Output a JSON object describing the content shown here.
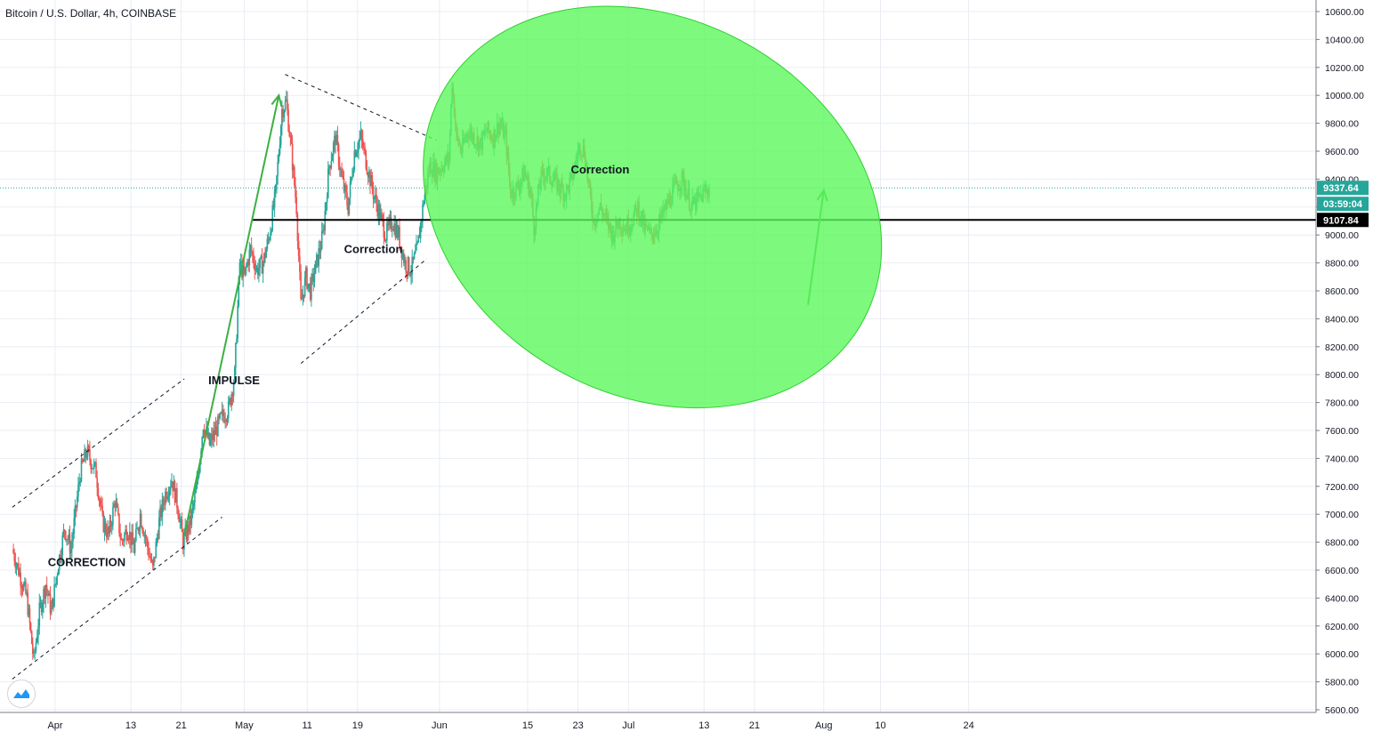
{
  "header": {
    "title": "Bitcoin / U.S. Dollar, 4h, COINBASE"
  },
  "colors": {
    "up": "#26a69a",
    "down": "#ef5350",
    "grid": "#e9edf3",
    "zone_fill": "#5cf75c",
    "zone_stroke": "#2fcf2f",
    "arrow": "#3cb043",
    "price_badge": "#26a69a",
    "support_badge": "#000000"
  },
  "chart_data": {
    "type": "candlestick",
    "title": "Bitcoin / U.S. Dollar, 4h, COINBASE",
    "xlabel": "",
    "ylabel": "",
    "ylim": [
      5600,
      10700
    ],
    "grid": true,
    "y_ticks": [
      "5600.00",
      "5800.00",
      "6000.00",
      "6200.00",
      "6400.00",
      "6600.00",
      "6800.00",
      "7000.00",
      "7200.00",
      "7400.00",
      "7600.00",
      "7800.00",
      "8000.00",
      "8200.00",
      "8400.00",
      "8600.00",
      "8800.00",
      "9000.00",
      "9200.00",
      "9400.00",
      "9600.00",
      "9800.00",
      "10000.00",
      "10200.00",
      "10400.00",
      "10600.00"
    ],
    "x_ticks": [
      {
        "label": "Apr",
        "day": 1
      },
      {
        "label": "13",
        "day": 13
      },
      {
        "label": "21",
        "day": 21
      },
      {
        "label": "May",
        "day": 31
      },
      {
        "label": "11",
        "day": 41
      },
      {
        "label": "19",
        "day": 49
      },
      {
        "label": "Jun",
        "day": 62
      },
      {
        "label": "15",
        "day": 76
      },
      {
        "label": "23",
        "day": 84
      },
      {
        "label": "Jul",
        "day": 92
      },
      {
        "label": "13",
        "day": 104
      },
      {
        "label": "21",
        "day": 112
      },
      {
        "label": "Aug",
        "day": 123
      },
      {
        "label": "10",
        "day": 132
      },
      {
        "label": "24",
        "day": 146
      }
    ],
    "price_path": [
      {
        "d": -5.8,
        "p": 6750
      },
      {
        "d": -3.5,
        "p": 6400
      },
      {
        "d": -2.4,
        "p": 5950
      },
      {
        "d": -1.5,
        "p": 6300
      },
      {
        "d": -0.5,
        "p": 6500
      },
      {
        "d": 0.4,
        "p": 6300
      },
      {
        "d": 1.5,
        "p": 6650
      },
      {
        "d": 2.5,
        "p": 6900
      },
      {
        "d": 3.5,
        "p": 6750
      },
      {
        "d": 5.0,
        "p": 7300
      },
      {
        "d": 6.0,
        "p": 7450
      },
      {
        "d": 7.5,
        "p": 7300
      },
      {
        "d": 8.5,
        "p": 6950
      },
      {
        "d": 9.5,
        "p": 6850
      },
      {
        "d": 10.5,
        "p": 7100
      },
      {
        "d": 11.5,
        "p": 6800
      },
      {
        "d": 12.5,
        "p": 6900
      },
      {
        "d": 13.5,
        "p": 6750
      },
      {
        "d": 14.5,
        "p": 7000
      },
      {
        "d": 15.5,
        "p": 6800
      },
      {
        "d": 16.5,
        "p": 6600
      },
      {
        "d": 17.5,
        "p": 6950
      },
      {
        "d": 18.5,
        "p": 7150
      },
      {
        "d": 19.5,
        "p": 7250
      },
      {
        "d": 20.5,
        "p": 7050
      },
      {
        "d": 21.3,
        "p": 6800
      },
      {
        "d": 22.5,
        "p": 6950
      },
      {
        "d": 23.5,
        "p": 7200
      },
      {
        "d": 24.5,
        "p": 7650
      },
      {
        "d": 25.5,
        "p": 7500
      },
      {
        "d": 26.5,
        "p": 7600
      },
      {
        "d": 27.5,
        "p": 7700
      },
      {
        "d": 28.5,
        "p": 7750
      },
      {
        "d": 29.5,
        "p": 8000
      },
      {
        "d": 30.3,
        "p": 8800
      },
      {
        "d": 31.0,
        "p": 8700
      },
      {
        "d": 32.0,
        "p": 8900
      },
      {
        "d": 33.0,
        "p": 8750
      },
      {
        "d": 34.0,
        "p": 8800
      },
      {
        "d": 35.0,
        "p": 9000
      },
      {
        "d": 36.0,
        "p": 9300
      },
      {
        "d": 37.0,
        "p": 9900
      },
      {
        "d": 37.7,
        "p": 9950
      },
      {
        "d": 38.5,
        "p": 9600
      },
      {
        "d": 39.3,
        "p": 9200
      },
      {
        "d": 40.0,
        "p": 8500
      },
      {
        "d": 40.8,
        "p": 8700
      },
      {
        "d": 41.5,
        "p": 8600
      },
      {
        "d": 42.5,
        "p": 8800
      },
      {
        "d": 43.5,
        "p": 9000
      },
      {
        "d": 44.5,
        "p": 9500
      },
      {
        "d": 45.5,
        "p": 9700
      },
      {
        "d": 46.5,
        "p": 9400
      },
      {
        "d": 47.5,
        "p": 9200
      },
      {
        "d": 48.5,
        "p": 9600
      },
      {
        "d": 49.5,
        "p": 9700
      },
      {
        "d": 50.5,
        "p": 9500
      },
      {
        "d": 51.5,
        "p": 9300
      },
      {
        "d": 52.5,
        "p": 9150
      },
      {
        "d": 53.5,
        "p": 9000
      },
      {
        "d": 54.5,
        "p": 9100
      },
      {
        "d": 55.5,
        "p": 9000
      },
      {
        "d": 56.5,
        "p": 8800
      },
      {
        "d": 57.5,
        "p": 8750
      },
      {
        "d": 58.5,
        "p": 8900
      },
      {
        "d": 59.5,
        "p": 9250
      },
      {
        "d": 60.5,
        "p": 9500
      },
      {
        "d": 61.5,
        "p": 9450
      },
      {
        "d": 62.5,
        "p": 9500
      },
      {
        "d": 63.5,
        "p": 9550
      },
      {
        "d": 64.0,
        "p": 10100
      },
      {
        "d": 64.7,
        "p": 9700
      },
      {
        "d": 65.5,
        "p": 9600
      },
      {
        "d": 66.5,
        "p": 9750
      },
      {
        "d": 67.5,
        "p": 9700
      },
      {
        "d": 68.5,
        "p": 9650
      },
      {
        "d": 69.5,
        "p": 9750
      },
      {
        "d": 70.5,
        "p": 9700
      },
      {
        "d": 71.5,
        "p": 9800
      },
      {
        "d": 72.5,
        "p": 9700
      },
      {
        "d": 73.3,
        "p": 9300
      },
      {
        "d": 74.5,
        "p": 9350
      },
      {
        "d": 75.5,
        "p": 9450
      },
      {
        "d": 76.5,
        "p": 9300
      },
      {
        "d": 77.0,
        "p": 9050
      },
      {
        "d": 78.0,
        "p": 9400
      },
      {
        "d": 79.0,
        "p": 9450
      },
      {
        "d": 80.0,
        "p": 9400
      },
      {
        "d": 81.0,
        "p": 9350
      },
      {
        "d": 82.0,
        "p": 9300
      },
      {
        "d": 83.0,
        "p": 9400
      },
      {
        "d": 84.3,
        "p": 9650
      },
      {
        "d": 85.0,
        "p": 9600
      },
      {
        "d": 85.8,
        "p": 9300
      },
      {
        "d": 86.5,
        "p": 9100
      },
      {
        "d": 87.5,
        "p": 9200
      },
      {
        "d": 88.5,
        "p": 9100
      },
      {
        "d": 89.5,
        "p": 9000
      },
      {
        "d": 90.5,
        "p": 9100
      },
      {
        "d": 91.5,
        "p": 9050
      },
      {
        "d": 92.5,
        "p": 9100
      },
      {
        "d": 93.5,
        "p": 9200
      },
      {
        "d": 94.5,
        "p": 9050
      },
      {
        "d": 95.5,
        "p": 9000
      },
      {
        "d": 96.5,
        "p": 9050
      },
      {
        "d": 97.5,
        "p": 9150
      },
      {
        "d": 98.5,
        "p": 9250
      },
      {
        "d": 99.5,
        "p": 9350
      },
      {
        "d": 100.5,
        "p": 9400
      },
      {
        "d": 101.3,
        "p": 9300
      },
      {
        "d": 102.0,
        "p": 9200
      },
      {
        "d": 103.0,
        "p": 9250
      },
      {
        "d": 104.0,
        "p": 9300
      },
      {
        "d": 104.8,
        "p": 9337.64
      }
    ],
    "last_price": "9337.64",
    "countdown": "03:59:04",
    "support_level": 9107.84,
    "support_label": "9107.84",
    "annotations": [
      {
        "text": "CORRECTION",
        "d": 6,
        "p": 6630
      },
      {
        "text": "IMPULSE",
        "d": 29.4,
        "p": 7930
      },
      {
        "text": "Correction",
        "d": 51.5,
        "p": 8870
      },
      {
        "text": "Correction",
        "d": 87.5,
        "p": 9440
      }
    ],
    "channel_lines": [
      {
        "from": {
          "d": -5.8,
          "p": 7050
        },
        "to": {
          "d": 21.5,
          "p": 7970
        }
      },
      {
        "from": {
          "d": -5.8,
          "p": 5820
        },
        "to": {
          "d": 27.5,
          "p": 6980
        }
      },
      {
        "from": {
          "d": 37.5,
          "p": 10150
        },
        "to": {
          "d": 61.5,
          "p": 9680
        }
      },
      {
        "from": {
          "d": 40.0,
          "p": 8080
        },
        "to": {
          "d": 60.0,
          "p": 8830
        }
      }
    ],
    "arrows": [
      {
        "from": {
          "d": 21.5,
          "p": 6850
        },
        "to": {
          "d": 36.5,
          "p": 10000
        }
      },
      {
        "from": {
          "d": 120.5,
          "p": 8500
        },
        "to": {
          "d": 123.0,
          "p": 9320
        }
      }
    ],
    "zone": {
      "center": {
        "d": 95.8,
        "p": 9200
      },
      "rx_days": 38,
      "ry_price": 1350,
      "angle_deg": 28
    }
  }
}
